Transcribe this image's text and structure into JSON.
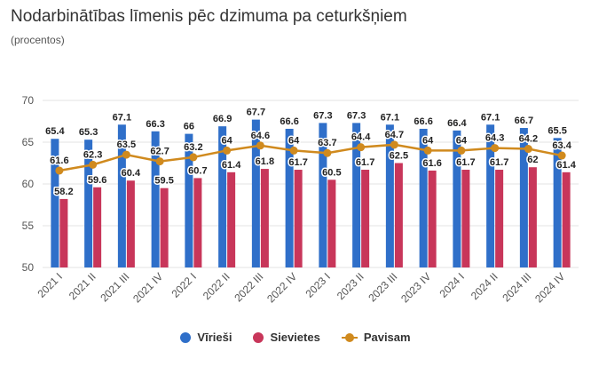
{
  "title": "Nodarbinātības līmenis pēc dzimuma pa ceturkšņiem",
  "subtitle": "(procentos)",
  "colors": {
    "virieshi": "#2f6fc9",
    "sievietes": "#c8365a",
    "pavisam": "#d08a1e",
    "grid": "#e3e3e3"
  },
  "legend": [
    {
      "label": "Vīrieši",
      "icon": "blue-circle"
    },
    {
      "label": "Sievietes",
      "icon": "red-circle"
    },
    {
      "label": "Pavisam",
      "icon": "orange-line-marker"
    }
  ],
  "chart_data": {
    "type": "bar",
    "categories": [
      "2021 I",
      "2021 II",
      "2021 III",
      "2021 IV",
      "2022 I",
      "2022 II",
      "2022 III",
      "2022 IV",
      "2023 I",
      "2023 II",
      "2023 III",
      "2023 IV",
      "2024 I",
      "2024 II",
      "2024 III",
      "2024 IV"
    ],
    "series": [
      {
        "name": "Vīrieši",
        "type": "bar",
        "values": [
          65.4,
          65.3,
          67.1,
          66.3,
          66,
          66.9,
          67.7,
          66.6,
          67.3,
          67.3,
          67.1,
          66.6,
          66.4,
          67.1,
          66.7,
          65.5
        ]
      },
      {
        "name": "Sievietes",
        "type": "bar",
        "values": [
          58.2,
          59.6,
          60.4,
          59.5,
          60.7,
          61.4,
          61.8,
          61.7,
          60.5,
          61.7,
          62.5,
          61.6,
          61.7,
          61.7,
          62,
          61.4
        ]
      },
      {
        "name": "Pavisam",
        "type": "line",
        "values": [
          61.6,
          62.3,
          63.5,
          62.7,
          63.2,
          64,
          64.6,
          64,
          63.7,
          64.4,
          64.7,
          64,
          64,
          64.3,
          64.2,
          63.4
        ]
      }
    ],
    "ylim": [
      50,
      70
    ],
    "yticks": [
      50,
      55,
      60,
      65,
      70
    ],
    "grid": true,
    "legend_position": "bottom"
  }
}
